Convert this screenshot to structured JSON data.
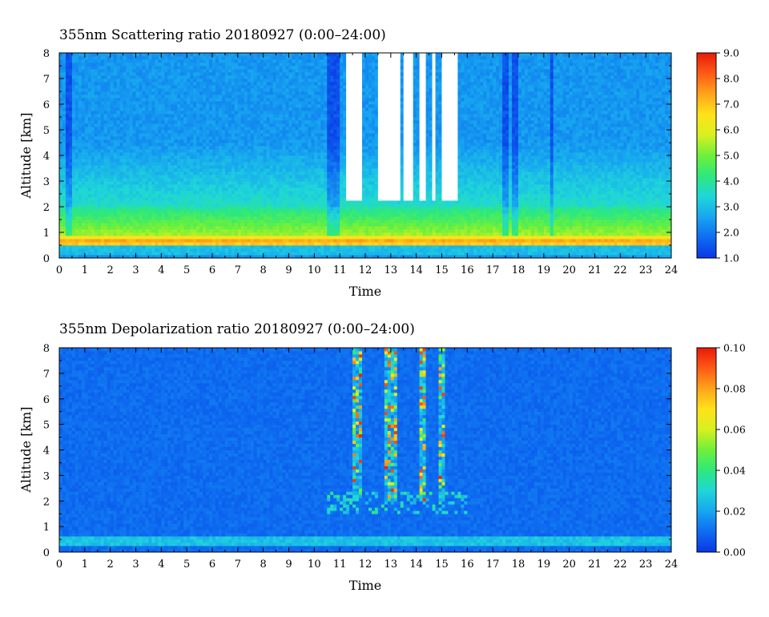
{
  "chart_data": [
    {
      "type": "heatmap",
      "title": "355nm Scattering ratio  20180927 (0:00–24:00)",
      "xlabel": "Time",
      "ylabel": "Altitude [km]",
      "xlim": [
        0,
        24
      ],
      "ylim": [
        0,
        8
      ],
      "x_ticks": [
        "0",
        "1",
        "2",
        "3",
        "4",
        "5",
        "6",
        "7",
        "8",
        "9",
        "10",
        "11",
        "12",
        "13",
        "14",
        "15",
        "16",
        "17",
        "18",
        "19",
        "20",
        "21",
        "22",
        "23",
        "24"
      ],
      "y_ticks": [
        "0",
        "1",
        "2",
        "3",
        "4",
        "5",
        "6",
        "7",
        "8"
      ],
      "colorbar": {
        "min": 1.0,
        "max": 9.0,
        "ticks": [
          "1.0",
          "2.0",
          "3.0",
          "4.0",
          "5.0",
          "6.0",
          "7.0",
          "8.0",
          "9.0"
        ],
        "colormap": [
          "#0a37e6",
          "#0e6cf0",
          "#17a6f0",
          "#1fd6d9",
          "#2ee87c",
          "#6ef03a",
          "#d8f020",
          "#ffe21a",
          "#ffa41a",
          "#ff5a14",
          "#e81a0a"
        ]
      },
      "features": {
        "background_value": 2.5,
        "boundary_layer_top_km": 2.0,
        "strong_layer_km": [
          0.5,
          0.9
        ],
        "cloud_gaps_hours": [
          [
            11.3,
            11.9
          ],
          [
            12.5,
            13.4
          ],
          [
            13.5,
            13.9
          ],
          [
            14.1,
            14.4
          ],
          [
            14.6,
            14.8
          ],
          [
            15.0,
            15.6
          ]
        ],
        "cloud_base_km": 2.2,
        "low_values_hours": [
          0.4,
          10.6,
          10.9,
          17.5,
          17.9,
          19.3
        ]
      }
    },
    {
      "type": "heatmap",
      "title": "355nm Depolarization ratio  20180927 (0:00–24:00)",
      "xlabel": "Time",
      "ylabel": "Altitude [km]",
      "xlim": [
        0,
        24
      ],
      "ylim": [
        0,
        8
      ],
      "x_ticks": [
        "0",
        "1",
        "2",
        "3",
        "4",
        "5",
        "6",
        "7",
        "8",
        "9",
        "10",
        "11",
        "12",
        "13",
        "14",
        "15",
        "16",
        "17",
        "18",
        "19",
        "20",
        "21",
        "22",
        "23",
        "24"
      ],
      "y_ticks": [
        "0",
        "1",
        "2",
        "3",
        "4",
        "5",
        "6",
        "7",
        "8"
      ],
      "colorbar": {
        "min": 0.0,
        "max": 0.1,
        "ticks": [
          "0.00",
          "0.02",
          "0.04",
          "0.06",
          "0.08",
          "0.10"
        ],
        "colormap": [
          "#0a37e6",
          "#0e6cf0",
          "#17a6f0",
          "#1fd6d9",
          "#2ee87c",
          "#6ef03a",
          "#d8f020",
          "#ffe21a",
          "#ffa41a",
          "#ff5a14",
          "#e81a0a"
        ]
      },
      "features": {
        "background_value": 0.01,
        "aerosol_layer_km": [
          0.3,
          0.6
        ],
        "high_depolarization_hours": [
          [
            11.5,
            11.9
          ],
          [
            12.8,
            13.3
          ],
          [
            14.1,
            14.4
          ],
          [
            14.9,
            15.1
          ]
        ],
        "cloud_base_km": 2.2
      }
    }
  ]
}
